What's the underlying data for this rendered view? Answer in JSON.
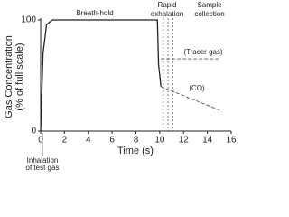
{
  "chart_data": {
    "type": "line",
    "x_label": "Time (s)",
    "y_label": [
      "Gas Concentration",
      "(% of full scale)"
    ],
    "xlim": [
      0,
      16
    ],
    "xticks": [
      0,
      2,
      4,
      6,
      8,
      10,
      12,
      14,
      16
    ],
    "ylim": [
      0,
      100
    ],
    "yticks": [
      0,
      100
    ],
    "series": [
      {
        "color": "#222222",
        "style": "solid",
        "x": [
          0,
          0.2,
          0.5,
          1,
          9.8,
          9.9,
          10.1
        ],
        "values": [
          0,
          70,
          96,
          100,
          100,
          60,
          40
        ]
      },
      {
        "color": "#555555",
        "style": "dashed",
        "x": [
          10.1,
          15
        ],
        "values": [
          65,
          65
        ]
      },
      {
        "color": "#555555",
        "style": "dashed",
        "x": [
          10.1,
          15
        ],
        "values": [
          40,
          19
        ]
      }
    ],
    "vlines": [
      10.3,
      10.7,
      11.1
    ],
    "annotations": [
      "Breath-hold",
      "Rapid",
      "exhalation",
      "Sample",
      "collection",
      "(Tracer gas)",
      "(CO)",
      "Inhalation",
      "of test gas"
    ]
  }
}
